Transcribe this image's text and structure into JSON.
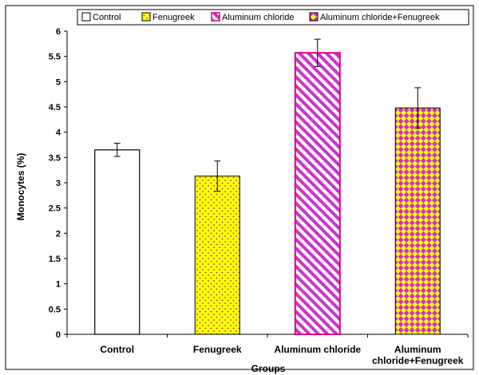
{
  "chart_data": {
    "type": "bar",
    "categories": [
      [
        "Control"
      ],
      [
        "Fenugreek"
      ],
      [
        "Aluminum chloride"
      ],
      [
        "Aluminum",
        "chloride+Fenugreek"
      ]
    ],
    "legend_labels": [
      "Control",
      "Fenugreek",
      "Aluminum chloride",
      "Aluminum chloride+Fenugreek"
    ],
    "values": [
      3.65,
      3.13,
      5.57,
      4.48
    ],
    "errors": [
      0.13,
      0.3,
      0.27,
      0.4
    ],
    "xlabel": "Groups",
    "ylabel": "Monocytes (%)",
    "ylim": [
      0,
      6
    ],
    "yticks": [
      "0",
      "0.5",
      "1",
      "1.5",
      "2",
      "2.5",
      "3",
      "3.5",
      "4",
      "4.5",
      "5",
      "5.5",
      "6"
    ],
    "legend_position": "top",
    "grid": false,
    "colors": {
      "control_fill": "#ffffff",
      "fenugreek_fill": "#ffff00",
      "fenugreek_dots": "#8b008b",
      "alcl_stripe": "#cc33cc",
      "alcl_border": "#e00080",
      "combo_a": "#ffff00",
      "combo_b": "#cc33cc"
    }
  }
}
